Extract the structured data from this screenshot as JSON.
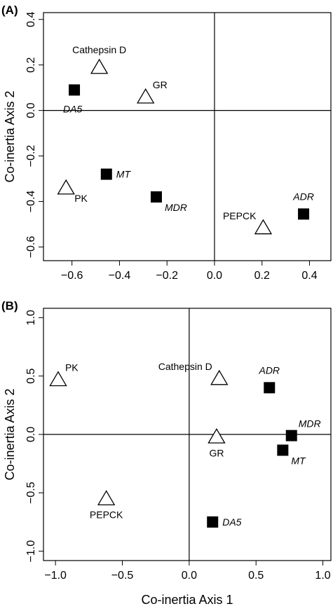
{
  "chart_data": [
    {
      "type": "scatter",
      "panel_label": "(A)",
      "xlabel": "",
      "ylabel": "Co-inertia Axis 2",
      "xlim": [
        -0.72,
        0.49
      ],
      "ylim": [
        -0.66,
        0.43
      ],
      "xticks": [
        -0.6,
        -0.4,
        -0.2,
        0.0,
        0.2,
        0.4
      ],
      "xtick_labels": [
        "−0.6",
        "−0.4",
        "−0.2",
        "0.0",
        "0.2",
        "0.4"
      ],
      "yticks": [
        -0.6,
        -0.4,
        -0.2,
        0.0,
        0.2,
        0.4
      ],
      "ytick_labels": [
        "−0.6",
        "−0.4",
        "−0.2",
        "0.0",
        "0.2",
        "0.4"
      ],
      "reference_lines": {
        "x": 0,
        "y": 0
      },
      "points": [
        {
          "label": "Cathepsin D",
          "x": -0.485,
          "y": 0.19,
          "marker": "open-triangle",
          "italic": false,
          "label_pos": "above"
        },
        {
          "label": "GR",
          "x": -0.29,
          "y": 0.06,
          "marker": "open-triangle",
          "italic": false,
          "label_pos": "upper-right"
        },
        {
          "label": "DA5",
          "x": -0.59,
          "y": 0.09,
          "marker": "filled-square",
          "italic": true,
          "label_pos": "below-left"
        },
        {
          "label": "MT",
          "x": -0.455,
          "y": -0.28,
          "marker": "filled-square",
          "italic": true,
          "label_pos": "right"
        },
        {
          "label": "PK",
          "x": -0.625,
          "y": -0.34,
          "marker": "open-triangle",
          "italic": false,
          "label_pos": "lower-right"
        },
        {
          "label": "MDR",
          "x": -0.245,
          "y": -0.38,
          "marker": "filled-square",
          "italic": true,
          "label_pos": "lower-right"
        },
        {
          "label": "ADR",
          "x": 0.375,
          "y": -0.455,
          "marker": "filled-square",
          "italic": true,
          "label_pos": "above"
        },
        {
          "label": "PEPCK",
          "x": 0.205,
          "y": -0.515,
          "marker": "open-triangle",
          "italic": false,
          "label_pos": "upper-left"
        }
      ]
    },
    {
      "type": "scatter",
      "panel_label": "(B)",
      "xlabel": "Co-inertia Axis 1",
      "ylabel": "Co-inertia Axis 2",
      "xlim": [
        -1.09,
        1.06
      ],
      "ylim": [
        -1.08,
        1.08
      ],
      "xticks": [
        -1.0,
        -0.5,
        0.0,
        0.5,
        1.0
      ],
      "xtick_labels": [
        "−1.0",
        "−0.5",
        "0.0",
        "0.5",
        "1.0"
      ],
      "yticks": [
        -1.0,
        -0.5,
        0.0,
        0.5,
        1.0
      ],
      "ytick_labels": [
        "−1.0",
        "−0.5",
        "0.0",
        "0.5",
        "1.0"
      ],
      "reference_lines": {
        "x": 0,
        "y": 0
      },
      "points": [
        {
          "label": "PK",
          "x": -0.98,
          "y": 0.47,
          "marker": "open-triangle",
          "italic": false,
          "label_pos": "upper-right"
        },
        {
          "label": "Cathepsin D",
          "x": 0.225,
          "y": 0.48,
          "marker": "open-triangle",
          "italic": false,
          "label_pos": "upper-left"
        },
        {
          "label": "ADR",
          "x": 0.6,
          "y": 0.4,
          "marker": "filled-square",
          "italic": true,
          "label_pos": "above"
        },
        {
          "label": "GR",
          "x": 0.205,
          "y": -0.02,
          "marker": "open-triangle",
          "italic": false,
          "label_pos": "below"
        },
        {
          "label": "MDR",
          "x": 0.765,
          "y": -0.01,
          "marker": "filled-square",
          "italic": true,
          "label_pos": "upper-right"
        },
        {
          "label": "MT",
          "x": 0.7,
          "y": -0.135,
          "marker": "filled-square",
          "italic": true,
          "label_pos": "lower-right"
        },
        {
          "label": "PEPCK",
          "x": -0.62,
          "y": -0.55,
          "marker": "open-triangle",
          "italic": false,
          "label_pos": "below"
        },
        {
          "label": "DA5",
          "x": 0.175,
          "y": -0.75,
          "marker": "filled-square",
          "italic": true,
          "label_pos": "right"
        }
      ]
    }
  ]
}
